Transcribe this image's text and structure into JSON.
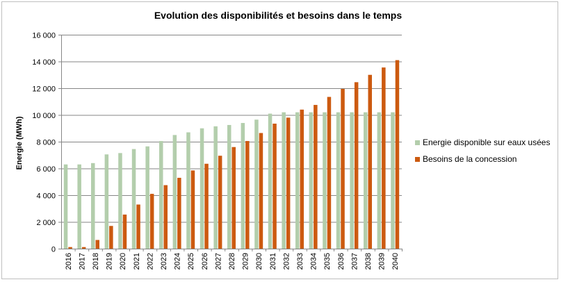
{
  "chart_data": {
    "type": "bar",
    "title": "Evolution des disponibilités et besoins dans le temps",
    "ylabel": "Energie (MWh)",
    "xlabel": "",
    "ylim": [
      0,
      16000
    ],
    "yticks": [
      0,
      2000,
      4000,
      6000,
      8000,
      10000,
      12000,
      14000,
      16000
    ],
    "ytick_labels": [
      "0",
      "2 000",
      "4 000",
      "6 000",
      "8 000",
      "10 000",
      "12 000",
      "14 000",
      "16 000"
    ],
    "grid": "horizontal",
    "legend_position": "right",
    "categories": [
      "2016",
      "2017",
      "2018",
      "2019",
      "2020",
      "2021",
      "2022",
      "2023",
      "2024",
      "2025",
      "2026",
      "2027",
      "2028",
      "2029",
      "2030",
      "2031",
      "2032",
      "2033",
      "2034",
      "2035",
      "2036",
      "2037",
      "2038",
      "2039",
      "2040"
    ],
    "series": [
      {
        "name": "Energie disponible sur eaux usées",
        "color": "#b3ceac",
        "values": [
          6300,
          6300,
          6400,
          7050,
          7150,
          7450,
          7650,
          8050,
          8500,
          8700,
          9000,
          9150,
          9250,
          9400,
          9650,
          10100,
          10200,
          10200,
          10200,
          10200,
          10200,
          10200,
          10200,
          10200,
          10200
        ]
      },
      {
        "name": "Besoins de la concession",
        "color": "#cc5a10",
        "values": [
          120,
          120,
          650,
          1700,
          2550,
          3300,
          4100,
          4750,
          5300,
          5850,
          6350,
          6950,
          7600,
          8050,
          8650,
          9350,
          9800,
          10400,
          10750,
          11350,
          11950,
          12450,
          13000,
          13550,
          14100
        ]
      }
    ]
  }
}
